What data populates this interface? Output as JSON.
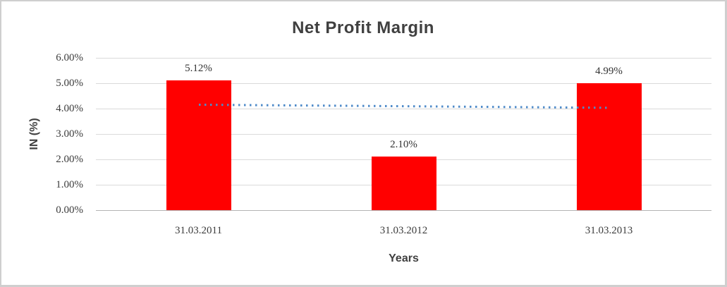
{
  "chart_data": {
    "type": "bar",
    "title": "Net Profit Margin",
    "xlabel": "Years",
    "ylabel": "IN (%)",
    "categories": [
      "31.03.2011",
      "31.03.2012",
      "31.03.2013"
    ],
    "values": [
      5.12,
      2.1,
      4.99
    ],
    "value_labels": [
      "5.12%",
      "2.10%",
      "4.99%"
    ],
    "ylim": [
      0,
      6
    ],
    "ytick_values": [
      0,
      1,
      2,
      3,
      4,
      5,
      6
    ],
    "ytick_labels": [
      "0.00%",
      "1.00%",
      "2.00%",
      "3.00%",
      "4.00%",
      "5.00%",
      "6.00%"
    ],
    "grid": true,
    "legend_position": "none",
    "bar_color": "#ff0000",
    "gridline_color": "#dadada",
    "axis_line_color": "#b3b3b3",
    "text_color": "#404040",
    "trendline": {
      "style": "dotted",
      "color": "#4f8bc9",
      "start_category_index": 0,
      "start_value": 4.15,
      "end_category_index": 2,
      "end_value": 4.03
    }
  }
}
